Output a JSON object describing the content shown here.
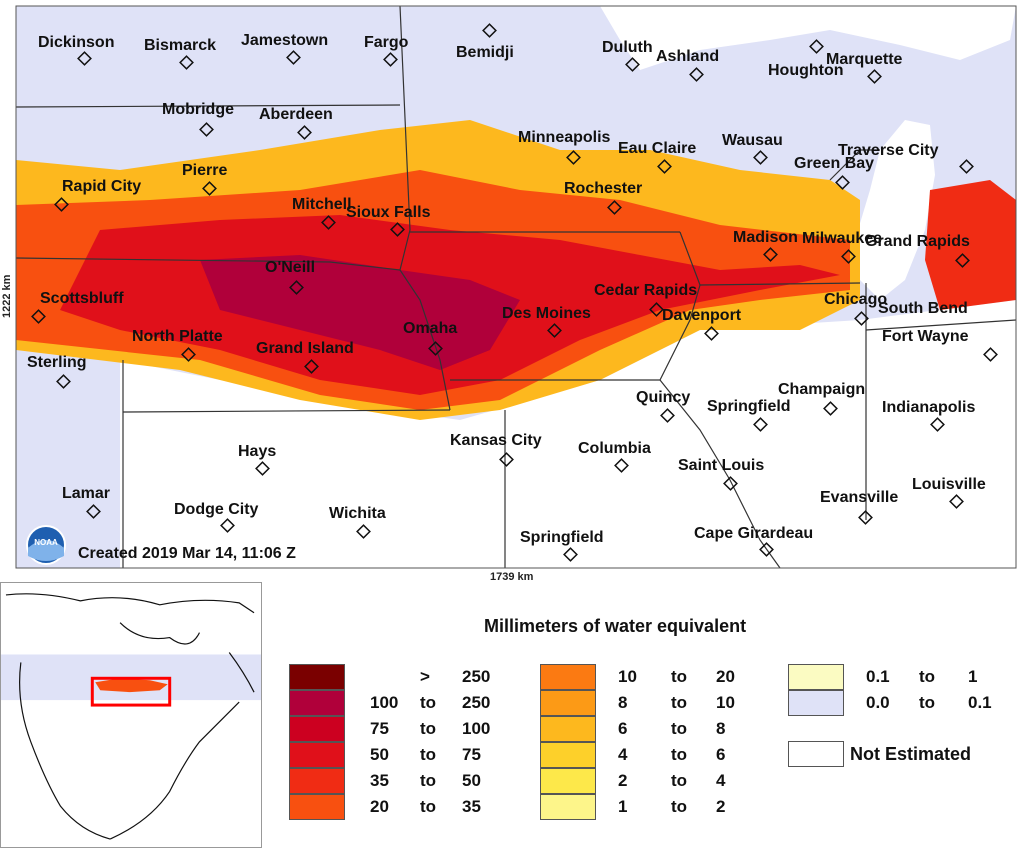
{
  "map": {
    "created": "Created 2019 Mar 14, 11:06 Z",
    "axis_x": "1739 km",
    "axis_y": "1222 km",
    "logo_text": "NOAA",
    "cities": [
      {
        "name": "Dickinson"
      },
      {
        "name": "Bismarck"
      },
      {
        "name": "Jamestown"
      },
      {
        "name": "Fargo"
      },
      {
        "name": "Bemidji"
      },
      {
        "name": "Duluth"
      },
      {
        "name": "Ashland"
      },
      {
        "name": "Houghton"
      },
      {
        "name": "Marquette"
      },
      {
        "name": "Mobridge"
      },
      {
        "name": "Aberdeen"
      },
      {
        "name": "Minneapolis"
      },
      {
        "name": "Eau Claire"
      },
      {
        "name": "Wausau"
      },
      {
        "name": "Traverse City"
      },
      {
        "name": "Green Bay"
      },
      {
        "name": "Pierre"
      },
      {
        "name": "Rapid City"
      },
      {
        "name": "Rochester"
      },
      {
        "name": "Mitchell"
      },
      {
        "name": "Sioux Falls"
      },
      {
        "name": "Madison"
      },
      {
        "name": "Milwaukee"
      },
      {
        "name": "Grand Rapids"
      },
      {
        "name": "O'Neill"
      },
      {
        "name": "Scottsbluff"
      },
      {
        "name": "Cedar Rapids"
      },
      {
        "name": "Des Moines"
      },
      {
        "name": "Davenport"
      },
      {
        "name": "Chicago"
      },
      {
        "name": "South Bend"
      },
      {
        "name": "North Platte"
      },
      {
        "name": "Omaha"
      },
      {
        "name": "Grand Island"
      },
      {
        "name": "Fort Wayne"
      },
      {
        "name": "Sterling"
      },
      {
        "name": "Champaign"
      },
      {
        "name": "Quincy"
      },
      {
        "name": "Springfield"
      },
      {
        "name": "Indianapolis"
      },
      {
        "name": "Kansas City"
      },
      {
        "name": "Columbia"
      },
      {
        "name": "Hays"
      },
      {
        "name": "Saint Louis"
      },
      {
        "name": "Lamar"
      },
      {
        "name": "Louisville"
      },
      {
        "name": "Evansville"
      },
      {
        "name": "Dodge City"
      },
      {
        "name": "Wichita"
      },
      {
        "name": "Cape Girardeau"
      },
      {
        "name": "Springfield"
      }
    ]
  },
  "legend": {
    "title": "Millimeters of water equivalent",
    "not_estimated": "Not Estimated",
    "items": [
      {
        "low": "",
        "sep": ">",
        "high": "250",
        "color": "#7a0000"
      },
      {
        "low": "100",
        "sep": "to",
        "high": "250",
        "color": "#b0003a"
      },
      {
        "low": "75",
        "sep": "to",
        "high": "100",
        "color": "#cc0020"
      },
      {
        "low": "50",
        "sep": "to",
        "high": "75",
        "color": "#e0101a"
      },
      {
        "low": "35",
        "sep": "to",
        "high": "50",
        "color": "#f02c14"
      },
      {
        "low": "20",
        "sep": "to",
        "high": "35",
        "color": "#f85010"
      },
      {
        "low": "10",
        "sep": "to",
        "high": "20",
        "color": "#fb7a12"
      },
      {
        "low": "8",
        "sep": "to",
        "high": "10",
        "color": "#fc9a16"
      },
      {
        "low": "6",
        "sep": "to",
        "high": "8",
        "color": "#fdb81e"
      },
      {
        "low": "4",
        "sep": "to",
        "high": "6",
        "color": "#fdd02a"
      },
      {
        "low": "2",
        "sep": "to",
        "high": "4",
        "color": "#fde84a"
      },
      {
        "low": "1",
        "sep": "to",
        "high": "2",
        "color": "#fdf58a"
      },
      {
        "low": "0.1",
        "sep": "to",
        "high": "1",
        "color": "#fbfbc2"
      },
      {
        "low": "0.0",
        "sep": "to",
        "high": "0.1",
        "color": "#dfe2f7"
      }
    ]
  },
  "colors": {
    "background_no_snow": "#dfe2f7",
    "not_estimated": "#ffffff",
    "inset_highlight": "#ff0000"
  }
}
